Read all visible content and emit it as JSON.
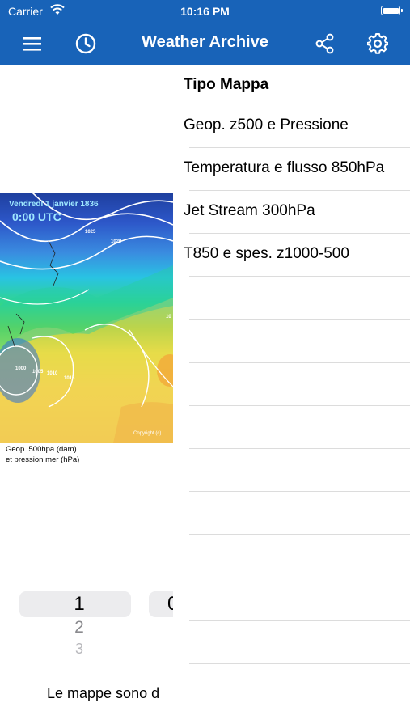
{
  "status_bar": {
    "carrier": "Carrier",
    "time": "10:16 PM"
  },
  "nav_bar": {
    "title": "Weather Archive",
    "menu_icon": "hamburger-menu-icon",
    "history_icon": "clock-icon",
    "share_icon": "share-icon",
    "settings_icon": "gear-icon"
  },
  "map": {
    "date_line": "Vendredi 1 janvier 1836",
    "time_line": "0:00 UTC",
    "isobar_labels": [
      "1025",
      "1020",
      "1000",
      "1005",
      "1010",
      "1015",
      "10"
    ],
    "copyright": "Copyright (c)",
    "caption_line1": "Geop. 500hpa (dam)",
    "caption_line2": "et pression mer (hPa)"
  },
  "picker": {
    "rows": [
      "1",
      "2",
      "3"
    ],
    "second_column_partial": "0"
  },
  "note_text": "Le mappe sono d",
  "side_menu": {
    "header": "Tipo Mappa",
    "items": [
      {
        "label": "Geop. z500 e Pressione"
      },
      {
        "label": "Temperatura e flusso 850hPa"
      },
      {
        "label": "Jet Stream 300hPa"
      },
      {
        "label": "T850 e spes. z1000-500"
      }
    ]
  },
  "colors": {
    "nav_blue": "#1863b8",
    "separator": "#dcdcdc"
  }
}
